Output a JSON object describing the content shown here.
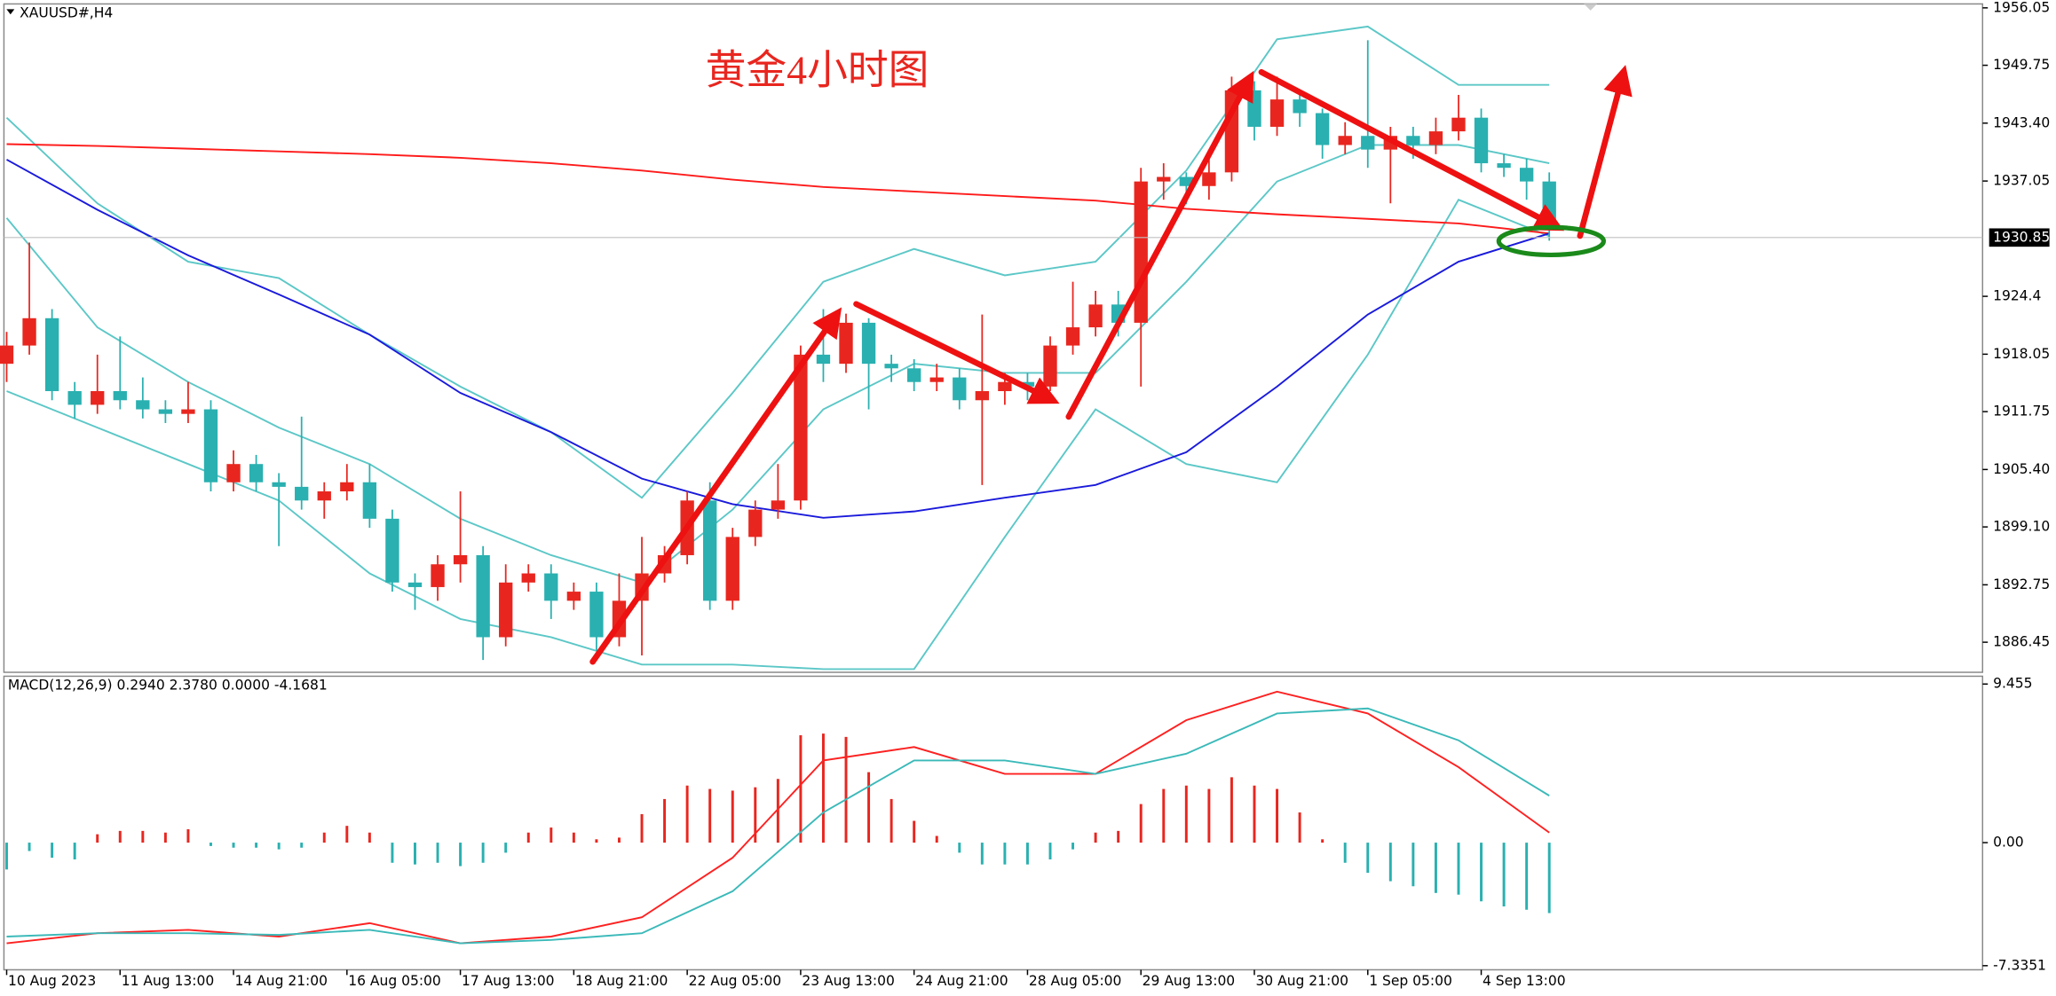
{
  "chart_data": [
    {
      "type": "candlestick",
      "title": "黄金4小时图",
      "symbol": "XAUUSD#,H4",
      "up_color": "#e8261f",
      "down_color": "#2ab0b0",
      "candles": [
        [
          1917,
          1920.5,
          1915,
          1919
        ],
        [
          1919,
          1930.3,
          1918,
          1922
        ],
        [
          1922,
          1923,
          1913,
          1914
        ],
        [
          1914,
          1915,
          1911,
          1912.5
        ],
        [
          1912.5,
          1918,
          1911.5,
          1914
        ],
        [
          1914,
          1920,
          1912,
          1913
        ],
        [
          1913,
          1915.5,
          1911,
          1912
        ],
        [
          1912,
          1913,
          1910.5,
          1911.5
        ],
        [
          1911.5,
          1915,
          1910.5,
          1912
        ],
        [
          1912,
          1913,
          1903,
          1904
        ],
        [
          1904,
          1907.5,
          1903,
          1906
        ],
        [
          1906,
          1907,
          1903,
          1904
        ],
        [
          1904,
          1905,
          1897,
          1903.5
        ],
        [
          1903.5,
          1911.2,
          1901,
          1902
        ],
        [
          1902,
          1904,
          1900,
          1903
        ],
        [
          1903,
          1906,
          1902,
          1904
        ],
        [
          1904,
          1906,
          1899,
          1900
        ],
        [
          1900,
          1901,
          1892,
          1893
        ],
        [
          1893,
          1894,
          1890,
          1892.5
        ],
        [
          1892.5,
          1896,
          1891,
          1895
        ],
        [
          1895,
          1903,
          1893,
          1896
        ],
        [
          1896,
          1897,
          1884.5,
          1887
        ],
        [
          1887,
          1895,
          1886,
          1893
        ],
        [
          1893,
          1895,
          1892,
          1894
        ],
        [
          1894,
          1895,
          1889,
          1891
        ],
        [
          1891,
          1893,
          1890,
          1892
        ],
        [
          1892,
          1893,
          1885.5,
          1887
        ],
        [
          1887,
          1894,
          1886,
          1891
        ],
        [
          1891,
          1898,
          1885,
          1894
        ],
        [
          1894,
          1897,
          1893,
          1896
        ],
        [
          1896,
          1903,
          1895,
          1902
        ],
        [
          1902,
          1904,
          1890,
          1891
        ],
        [
          1891,
          1899,
          1890,
          1898
        ],
        [
          1898,
          1902,
          1897,
          1901
        ],
        [
          1901,
          1906,
          1900,
          1902
        ],
        [
          1902,
          1919,
          1901,
          1918
        ],
        [
          1918,
          1923,
          1915,
          1917
        ],
        [
          1917,
          1922.5,
          1916,
          1921.5
        ],
        [
          1921.5,
          1922,
          1912,
          1917
        ],
        [
          1917,
          1918,
          1915,
          1916.5
        ],
        [
          1916.5,
          1917.5,
          1914,
          1915
        ],
        [
          1915,
          1917,
          1914,
          1915.5
        ],
        [
          1915.5,
          1916.5,
          1912,
          1913
        ],
        [
          1913,
          1922.4,
          1903.7,
          1914
        ],
        [
          1914,
          1916,
          1912.5,
          1915
        ],
        [
          1915,
          1916,
          1913,
          1914.5
        ],
        [
          1914.5,
          1920,
          1914,
          1919
        ],
        [
          1919,
          1926,
          1918,
          1921
        ],
        [
          1921,
          1925,
          1920,
          1923.5
        ],
        [
          1923.5,
          1925,
          1920,
          1921.5
        ],
        [
          1921.5,
          1938.5,
          1914.5,
          1937
        ],
        [
          1937,
          1939,
          1935,
          1937.5
        ],
        [
          1937.5,
          1938,
          1934.5,
          1936.5
        ],
        [
          1936.5,
          1940,
          1935,
          1938
        ],
        [
          1938,
          1948.5,
          1937,
          1947
        ],
        [
          1947,
          1948,
          1941.5,
          1943
        ],
        [
          1943,
          1948.5,
          1942,
          1946
        ],
        [
          1946,
          1946.5,
          1943,
          1944.5
        ],
        [
          1944.5,
          1945,
          1939.5,
          1941
        ],
        [
          1941,
          1943.5,
          1940,
          1942
        ],
        [
          1942,
          1952.5,
          1938.5,
          1940.5
        ],
        [
          1940.5,
          1943,
          1934.6,
          1942
        ],
        [
          1942,
          1943,
          1939.5,
          1941
        ],
        [
          1941,
          1944,
          1940,
          1942.5
        ],
        [
          1942.5,
          1946.5,
          1941.5,
          1944
        ],
        [
          1944,
          1945,
          1938,
          1939
        ],
        [
          1939,
          1940,
          1937.5,
          1938.5
        ],
        [
          1938.5,
          1939.5,
          1935,
          1937
        ],
        [
          1937,
          1938,
          1930.5,
          1932
        ]
      ],
      "overlay_x": [
        0,
        4,
        8,
        12,
        16,
        20,
        24,
        28,
        32,
        36,
        40,
        44,
        48,
        52,
        56,
        60,
        64,
        68
      ],
      "overlays": [
        {
          "color": "#5cc7c7",
          "values": [
            1944,
            1934.6,
            1928.2,
            1926.4,
            1920.2,
            1914.5,
            1909.5,
            1902.3,
            1913.8,
            1926,
            1929.6,
            1926.7,
            1928.2,
            1938.2,
            1952.6,
            1954,
            1947.6,
            1947.6
          ]
        },
        {
          "color": "#5cc7c7",
          "values": [
            1933,
            1921,
            1915,
            1910,
            1906,
            1900,
            1896,
            1893,
            1901,
            1912,
            1917,
            1916,
            1916,
            1926,
            1937,
            1941,
            1941,
            1939
          ]
        },
        {
          "color": "#5cc7c7",
          "values": [
            1914,
            1910,
            1906,
            1902,
            1894,
            1889,
            1887,
            1884,
            1884,
            1883.5,
            1883.5,
            1898,
            1912,
            1906,
            1904,
            1918,
            1935,
            1931
          ]
        },
        {
          "color": "#ff1a1a",
          "values": [
            1941.1,
            1940.9,
            1940.6,
            1940.3,
            1940,
            1939.6,
            1939,
            1938.2,
            1937.2,
            1936.4,
            1935.9,
            1935.4,
            1934.9,
            1934,
            1933.4,
            1932.9,
            1932.4,
            1931.3
          ]
        },
        {
          "color": "#1a1adb",
          "values": [
            1939.4,
            1933.9,
            1928.9,
            1924.6,
            1920.2,
            1913.8,
            1909.5,
            1904.4,
            1901.6,
            1900.1,
            1900.8,
            1902.3,
            1903.7,
            1907.3,
            1914.5,
            1922.4,
            1928.2,
            1931.3
          ]
        }
      ],
      "last_price": 1930.85,
      "xlim": [
        -0.12,
        87.1
      ],
      "xticks": [
        {
          "value": 0,
          "label": "10 Aug 2023"
        },
        {
          "value": 5,
          "label": "11 Aug 13:00"
        },
        {
          "value": 10,
          "label": "14 Aug 21:00"
        },
        {
          "value": 15,
          "label": "16 Aug 05:00"
        },
        {
          "value": 20,
          "label": "17 Aug 13:00"
        },
        {
          "value": 25,
          "label": "18 Aug 21:00"
        },
        {
          "value": 30,
          "label": "22 Aug 05:00"
        },
        {
          "value": 35,
          "label": "23 Aug 13:00"
        },
        {
          "value": 40,
          "label": "24 Aug 21:00"
        },
        {
          "value": 45,
          "label": "28 Aug 05:00"
        },
        {
          "value": 50,
          "label": "29 Aug 13:00"
        },
        {
          "value": 55,
          "label": "30 Aug 21:00"
        },
        {
          "value": 60,
          "label": "1 Sep 05:00"
        },
        {
          "value": 65,
          "label": "4 Sep 13:00"
        }
      ],
      "ylim": [
        1883.15,
        1956.48
      ],
      "yticks": [
        1956.05,
        1949.75,
        {
          "value": 1943.4,
          "label": "1943.40"
        },
        1937.05,
        1924.4,
        1918.05,
        1911.75,
        {
          "value": 1905.4,
          "label": "1905.40"
        },
        {
          "value": 1899.1,
          "label": "1899.10"
        },
        1892.75,
        1886.45
      ]
    },
    {
      "type": "macd",
      "label": "MACD(12,26,9) 0.2940 2.3780 0.0000 -4.1681",
      "pos_color": "#e8261f",
      "neg_color": "#2ab0b0",
      "histogram": [
        -1.6,
        -0.5,
        -0.9,
        -1.0,
        0.5,
        0.7,
        0.7,
        0.6,
        0.8,
        -0.2,
        -0.3,
        -0.3,
        -0.4,
        -0.3,
        0.6,
        1.0,
        0.6,
        -1.2,
        -1.3,
        -1.2,
        -1.4,
        -1.2,
        -0.6,
        0.6,
        0.9,
        0.6,
        0.2,
        0.3,
        1.7,
        2.6,
        3.4,
        3.2,
        3.1,
        3.3,
        3.8,
        6.4,
        6.5,
        6.3,
        4.2,
        2.6,
        1.3,
        0.4,
        -0.6,
        -1.3,
        -1.3,
        -1.3,
        -1.0,
        -0.4,
        0.6,
        0.7,
        2.3,
        3.2,
        3.4,
        3.2,
        3.9,
        3.4,
        3.2,
        1.8,
        0.2,
        -1.2,
        -1.8,
        -2.3,
        -2.6,
        -3.0,
        -3.1,
        -3.5,
        -3.8,
        -4.0,
        -4.2
      ],
      "line_x": [
        0,
        4,
        8,
        12,
        16,
        20,
        24,
        28,
        32,
        36,
        40,
        44,
        48,
        52,
        56,
        60,
        64,
        68
      ],
      "lines": [
        {
          "color": "#ff2020",
          "values": [
            -6.0,
            -5.4,
            -5.2,
            -5.6,
            -4.8,
            -6.0,
            -5.6,
            -4.45,
            -0.9,
            4.9,
            5.7,
            4.1,
            4.1,
            7.3,
            9.0,
            7.7,
            4.5,
            0.6
          ]
        },
        {
          "color": "#3bb9b9",
          "values": [
            -5.6,
            -5.4,
            -5.4,
            -5.5,
            -5.2,
            -6.0,
            -5.8,
            -5.4,
            -2.9,
            1.8,
            4.9,
            4.9,
            4.1,
            5.3,
            7.7,
            8.0,
            6.1,
            2.8
          ]
        }
      ],
      "ylim": [
        -7.58,
        9.92
      ],
      "yticks": [
        9.455,
        {
          "value": 0,
          "label": "0.00"
        },
        -7.3351
      ]
    }
  ]
}
